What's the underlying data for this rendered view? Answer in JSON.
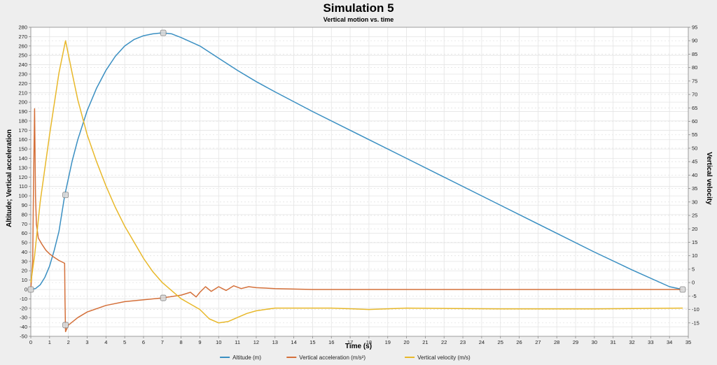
{
  "chart_data": {
    "type": "line",
    "title": "Simulation 5",
    "subtitle": "Vertical motion vs. time",
    "xlabel": "Time (s)",
    "ylabel_left": "Altitude; Vertical acceleration",
    "ylabel_right": "Vertical velocity",
    "xlim": [
      0,
      35
    ],
    "ylim_left": [
      -50,
      280
    ],
    "ylim_right": [
      -20,
      95
    ],
    "x_ticks": [
      0,
      1,
      2,
      3,
      4,
      5,
      6,
      7,
      8,
      9,
      10,
      11,
      12,
      13,
      14,
      15,
      16,
      17,
      18,
      19,
      20,
      21,
      22,
      23,
      24,
      25,
      26,
      27,
      28,
      29,
      30,
      31,
      32,
      33,
      34,
      35
    ],
    "y_left_ticks": [
      -50,
      -40,
      -30,
      -20,
      -10,
      0,
      10,
      20,
      30,
      40,
      50,
      60,
      70,
      80,
      90,
      100,
      110,
      120,
      130,
      140,
      150,
      160,
      170,
      180,
      190,
      200,
      210,
      220,
      230,
      240,
      250,
      260,
      270,
      280
    ],
    "y_right_ticks": [
      -15,
      -10,
      -5,
      0,
      5,
      10,
      15,
      20,
      25,
      30,
      35,
      40,
      45,
      50,
      55,
      60,
      65,
      70,
      75,
      80,
      85,
      90,
      95
    ],
    "grid": true,
    "legend_position": "bottom",
    "series": [
      {
        "name": "Altitude (m)",
        "axis": "left",
        "color": "#3a8fc2",
        "points": [
          [
            0,
            0
          ],
          [
            0.25,
            1
          ],
          [
            0.5,
            5
          ],
          [
            0.75,
            13
          ],
          [
            1,
            25
          ],
          [
            1.25,
            42
          ],
          [
            1.5,
            62
          ],
          [
            1.8,
            100
          ],
          [
            2.2,
            137
          ],
          [
            2.5,
            160
          ],
          [
            3,
            191
          ],
          [
            3.5,
            215
          ],
          [
            4,
            234
          ],
          [
            4.5,
            249
          ],
          [
            5,
            260
          ],
          [
            5.5,
            267
          ],
          [
            6,
            271
          ],
          [
            6.5,
            273
          ],
          [
            7,
            274
          ],
          [
            7.5,
            273
          ],
          [
            8,
            269
          ],
          [
            9,
            260
          ],
          [
            10,
            247
          ],
          [
            11,
            234
          ],
          [
            12,
            222
          ],
          [
            13,
            211
          ],
          [
            15,
            190
          ],
          [
            17,
            170
          ],
          [
            20,
            140
          ],
          [
            22,
            120
          ],
          [
            25,
            90
          ],
          [
            28,
            60
          ],
          [
            30,
            40
          ],
          [
            32,
            21
          ],
          [
            34,
            3
          ],
          [
            34.7,
            0
          ]
        ]
      },
      {
        "name": "Vertical acceleration (m/s²)",
        "axis": "left",
        "color": "#d4703a",
        "points": [
          [
            0,
            0
          ],
          [
            0.1,
            30
          ],
          [
            0.15,
            120
          ],
          [
            0.2,
            193
          ],
          [
            0.25,
            100
          ],
          [
            0.3,
            70
          ],
          [
            0.4,
            55
          ],
          [
            0.6,
            48
          ],
          [
            0.8,
            42
          ],
          [
            1,
            38
          ],
          [
            1.2,
            35
          ],
          [
            1.5,
            31
          ],
          [
            1.8,
            28
          ],
          [
            1.82,
            -10
          ],
          [
            1.85,
            -45
          ],
          [
            2,
            -38
          ],
          [
            2.5,
            -30
          ],
          [
            3,
            -24
          ],
          [
            4,
            -17
          ],
          [
            5,
            -13
          ],
          [
            6,
            -11
          ],
          [
            7,
            -9
          ],
          [
            8,
            -6
          ],
          [
            8.5,
            -3
          ],
          [
            8.8,
            -8
          ],
          [
            9,
            -3
          ],
          [
            9.3,
            3
          ],
          [
            9.6,
            -2
          ],
          [
            10,
            3
          ],
          [
            10.4,
            -1
          ],
          [
            10.8,
            4
          ],
          [
            11.2,
            1
          ],
          [
            11.6,
            3
          ],
          [
            12,
            2
          ],
          [
            13,
            1
          ],
          [
            15,
            0
          ],
          [
            20,
            0
          ],
          [
            25,
            0
          ],
          [
            30,
            0
          ],
          [
            34.7,
            0
          ]
        ]
      },
      {
        "name": "Vertical velocity (m/s)",
        "axis": "right",
        "color": "#e8b82a",
        "points": [
          [
            0,
            0
          ],
          [
            0.2,
            10
          ],
          [
            0.5,
            30
          ],
          [
            1,
            55
          ],
          [
            1.5,
            78
          ],
          [
            1.85,
            90
          ],
          [
            2.2,
            78
          ],
          [
            2.5,
            68
          ],
          [
            3,
            55
          ],
          [
            3.5,
            45
          ],
          [
            4,
            36
          ],
          [
            4.5,
            28
          ],
          [
            5,
            21
          ],
          [
            5.5,
            15
          ],
          [
            6,
            9
          ],
          [
            6.5,
            4
          ],
          [
            7,
            0
          ],
          [
            7.5,
            -3
          ],
          [
            8,
            -6
          ],
          [
            8.5,
            -8
          ],
          [
            9,
            -10
          ],
          [
            9.5,
            -13.5
          ],
          [
            10,
            -15
          ],
          [
            10.5,
            -14.5
          ],
          [
            11,
            -13
          ],
          [
            11.5,
            -11.5
          ],
          [
            12,
            -10.5
          ],
          [
            13,
            -9.5
          ],
          [
            14,
            -9.5
          ],
          [
            16,
            -9.5
          ],
          [
            18,
            -10
          ],
          [
            20,
            -9.5
          ],
          [
            25,
            -9.8
          ],
          [
            30,
            -9.8
          ],
          [
            34.7,
            -9.5
          ]
        ]
      }
    ],
    "events": [
      {
        "x": 0,
        "y": 0,
        "axis": "left"
      },
      {
        "x": 1.85,
        "y": 101,
        "axis": "left"
      },
      {
        "x": 1.85,
        "y": -38,
        "axis": "left"
      },
      {
        "x": 7.05,
        "y": 274,
        "axis": "left"
      },
      {
        "x": 7.05,
        "y": -9,
        "axis": "left"
      },
      {
        "x": 34.7,
        "y": 0,
        "axis": "left"
      }
    ]
  }
}
